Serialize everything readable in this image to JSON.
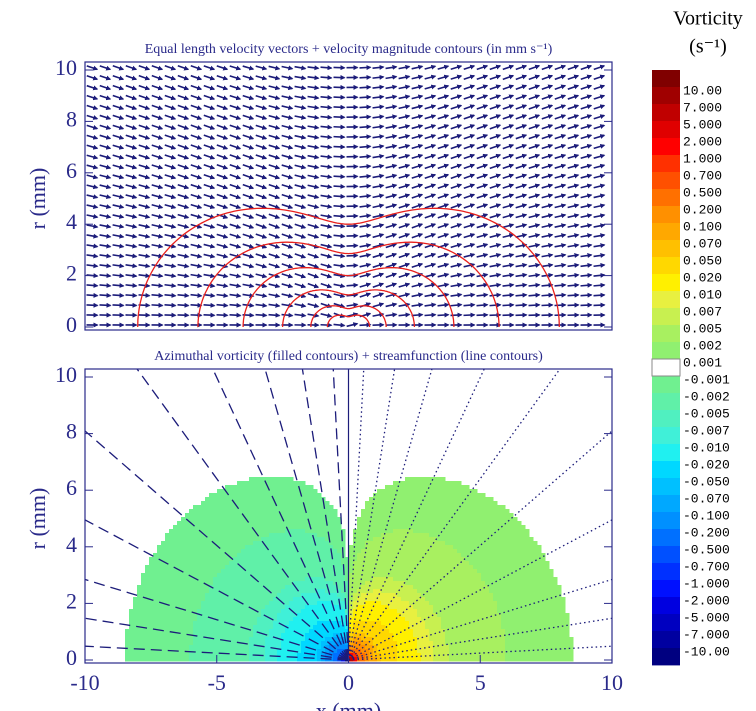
{
  "chart_data": [
    {
      "type": "vector-field",
      "title": "Equal length velocity vectors + velocity magnitude contours (in mm s⁻¹)",
      "ylabel": "r (mm)",
      "xlim": [
        -10,
        10
      ],
      "ylim": [
        0,
        10
      ],
      "yticks": [
        0,
        2,
        4,
        6,
        8,
        10
      ],
      "color": "#1c1c7a",
      "contour_color": "#e8201c"
    },
    {
      "type": "filled-contour",
      "title": "Azimuthal vorticity (filled contours) + streamfunction (line contours)",
      "xlabel": "x (mm)",
      "ylabel": "r (mm)",
      "xlim": [
        -10,
        10
      ],
      "ylim": [
        0,
        10
      ],
      "xticks": [
        -10,
        -5,
        0,
        5,
        10
      ],
      "yticks": [
        0,
        2,
        4,
        6,
        8,
        10
      ],
      "line_color": "#1c1c7a",
      "colorbar": {
        "title": "Vorticity",
        "unit": "(s⁻¹)",
        "levels": [
          {
            "value": 10,
            "label": "10.00"
          },
          {
            "value": 7,
            "label": "7.000"
          },
          {
            "value": 5,
            "label": "5.000"
          },
          {
            "value": 2,
            "label": "2.000"
          },
          {
            "value": 1,
            "label": "1.000"
          },
          {
            "value": 0.7,
            "label": "0.700"
          },
          {
            "value": 0.5,
            "label": "0.500"
          },
          {
            "value": 0.2,
            "label": "0.200"
          },
          {
            "value": 0.1,
            "label": "0.100"
          },
          {
            "value": 0.07,
            "label": "0.070"
          },
          {
            "value": 0.05,
            "label": "0.050"
          },
          {
            "value": 0.02,
            "label": "0.020"
          },
          {
            "value": 0.01,
            "label": "0.010"
          },
          {
            "value": 0.007,
            "label": "0.007"
          },
          {
            "value": 0.005,
            "label": "0.005"
          },
          {
            "value": 0.002,
            "label": "0.002"
          },
          {
            "value": 0.001,
            "label": "0.001"
          },
          {
            "value": -0.001,
            "label": "-0.001"
          },
          {
            "value": -0.002,
            "label": "-0.002"
          },
          {
            "value": -0.005,
            "label": "-0.005"
          },
          {
            "value": -0.007,
            "label": "-0.007"
          },
          {
            "value": -0.01,
            "label": "-0.010"
          },
          {
            "value": -0.02,
            "label": "-0.020"
          },
          {
            "value": -0.05,
            "label": "-0.050"
          },
          {
            "value": -0.07,
            "label": "-0.070"
          },
          {
            "value": -0.1,
            "label": "-0.100"
          },
          {
            "value": -0.2,
            "label": "-0.200"
          },
          {
            "value": -0.5,
            "label": "-0.500"
          },
          {
            "value": -0.7,
            "label": "-0.700"
          },
          {
            "value": -1,
            "label": "-1.000"
          },
          {
            "value": -2,
            "label": "-2.000"
          },
          {
            "value": -5,
            "label": "-5.000"
          },
          {
            "value": -7,
            "label": "-7.000"
          },
          {
            "value": -10,
            "label": "-10.00"
          }
        ],
        "colors": [
          "#800000",
          "#a00000",
          "#c00000",
          "#e00000",
          "#ff0000",
          "#ff3000",
          "#ff5000",
          "#ff7000",
          "#ff9000",
          "#ffa800",
          "#ffc000",
          "#ffd800",
          "#fff000",
          "#e8f040",
          "#c8f050",
          "#a8f060",
          "#90f070",
          "#ffffff",
          "#70f090",
          "#60f0a8",
          "#50f0c0",
          "#40f0d8",
          "#20f0f0",
          "#00d8ff",
          "#00c0ff",
          "#00a8ff",
          "#0090ff",
          "#0070ff",
          "#0050ff",
          "#0030ff",
          "#0010ff",
          "#0000e0",
          "#0000c0",
          "#0000a0",
          "#000080"
        ]
      }
    }
  ]
}
